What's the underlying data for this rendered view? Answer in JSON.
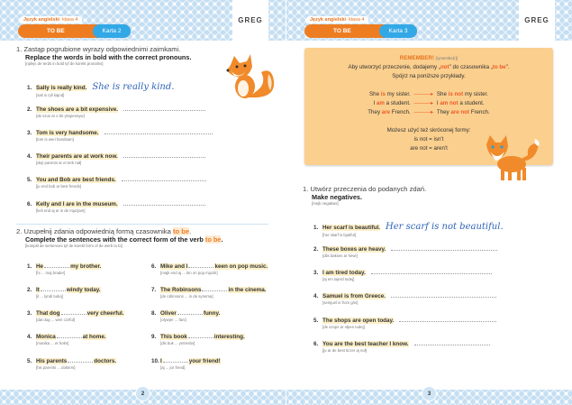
{
  "header": {
    "subject": "Język angielski",
    "class": "klasa 4",
    "topic": "TO BE",
    "logo": "GREG"
  },
  "left": {
    "card": "Karta 2",
    "page_number": "2",
    "ex1": {
      "num": "1.",
      "title_pl": "Zastąp pogrubione wyrazy odpowiednimi zaimkami.",
      "title_en": "Replace the words in bold with the correct pronouns.",
      "phonetic": "[riplejs de terds in bold tyf de korekt pronalns]",
      "items": [
        {
          "n": "1.",
          "bold": "Sally",
          "rest": " is really kind.",
          "ph": "[sali is ryli kajnd]",
          "answer": "She is really kind."
        },
        {
          "n": "2.",
          "bold": "The shoes",
          "rest": " are a bit expensive.",
          "ph": "[de szus ar e bit ykspensyw]"
        },
        {
          "n": "3.",
          "bold": "Tom",
          "rest": " is very handsome.",
          "ph": "[tom is weri handsam]"
        },
        {
          "n": "4.",
          "bold": "Their parents",
          "rest": " are at work now.",
          "ph": "[dejr parents ar et terk nał]"
        },
        {
          "n": "5.",
          "bold": "You and Bob",
          "rest": " are best friends.",
          "ph": "[ju end bob ar best frends]"
        },
        {
          "n": "6.",
          "bold": "Kelly and I",
          "rest": " are in the museum.",
          "ph": "[keli end aj ar in de mjuzjam]"
        }
      ]
    },
    "ex2": {
      "num": "2.",
      "title_pl": "Uzupełnij zdania odpowiednią formą czasownika",
      "title_en": "Complete the sentences with the correct form of the verb",
      "verb": "to be",
      "phonetic": "[komplit de sentences tyf de korekt form of de werb tu bi]",
      "items": [
        {
          "n": "1.",
          "a": "He",
          "b": "my brother.",
          "ph": "[hi ... maj brader]"
        },
        {
          "n": "2.",
          "a": "It",
          "b": "windy today.",
          "ph": "[it ... łyndi tudej]"
        },
        {
          "n": "3.",
          "a": "That dog",
          "b": "very cheerful.",
          "ph": "[dat dog ... weri czirful]"
        },
        {
          "n": "4.",
          "a": "Monica",
          "b": "at home.",
          "ph": "[monika ... et hołm]"
        },
        {
          "n": "5.",
          "a": "His parents",
          "b": "doctors.",
          "ph": "[his parents ... dokters]"
        },
        {
          "n": "6.",
          "a": "Mike and I",
          "b": "keen on pop music.",
          "ph": "[majk end aj ... kin on pop mjuzik]"
        },
        {
          "n": "7.",
          "a": "The Robinsons",
          "b": "in the cinema.",
          "ph": "[de robinsons ... in de synema]"
        },
        {
          "n": "8.",
          "a": "Oliver",
          "b": "funny.",
          "ph": "[olywjer ... fani]"
        },
        {
          "n": "9.",
          "a": "This book",
          "b": "interesting.",
          "ph": "[dis buk ... yntrestin]"
        },
        {
          "n": "10.",
          "a": "I",
          "b": "your friend!",
          "ph": "[aj ... jor frend]"
        }
      ]
    }
  },
  "right": {
    "card": "Karta 3",
    "page_number": "3",
    "remember": {
      "title": "REMEMBER!",
      "phonetic": "[rymembe(r)]",
      "line1a": "Aby utworzyć przeczenie, dodajemy „",
      "not": "not",
      "line1b": "\" do czasownika „",
      "tobe": "to be",
      "line1c": "\".",
      "line2": "Spójrz na poniższe przykłady.",
      "examples": [
        {
          "a1": "She ",
          "v1": "is",
          "a2": " my sister.",
          "b1": "She ",
          "v2": "is not",
          "b2": " my sister."
        },
        {
          "a1": "I ",
          "v1": "am",
          "a2": " a student.",
          "b1": "I ",
          "v2": "am not",
          "b2": " a student."
        },
        {
          "a1": "They ",
          "v1": "are",
          "a2": " French.",
          "b1": "They ",
          "v2": "are not",
          "b2": " French."
        }
      ],
      "short_title": "Możesz użyć też skróconej formy:",
      "short1": "is not = isn't",
      "short2": "are not = aren't"
    },
    "ex1": {
      "num": "1.",
      "title_pl": "Utwórz przeczenia do podanych zdań.",
      "title_en": "Make negatives.",
      "phonetic": "[mejk negatiws]",
      "items": [
        {
          "n": "1.",
          "text": "Her scarf is beautiful.",
          "ph": "[her skarf is bjutiful]",
          "answer": "Her scarf is not beautiful."
        },
        {
          "n": "2.",
          "text": "These boxes are heavy.",
          "ph": "[diis bakses ar hewi]"
        },
        {
          "n": "3.",
          "text": "I am tired today.",
          "ph": "[aj em tajerd tudej]"
        },
        {
          "n": "4.",
          "text": "Samuel is from Greece.",
          "ph": "[semjuel is from gris]"
        },
        {
          "n": "5.",
          "text": "The shops are open today.",
          "ph": "[de szops ar ołpen tudej]"
        },
        {
          "n": "6.",
          "text": "You are the best teacher I know.",
          "ph": "[ju ar de best ticzer aj noł]"
        }
      ]
    }
  },
  "colors": {
    "orange": "#ee7d22",
    "blue": "#32a8e6",
    "highlight": "#fdf0c9",
    "box": "#fbcf8e",
    "handwriting": "#2f63b8"
  }
}
